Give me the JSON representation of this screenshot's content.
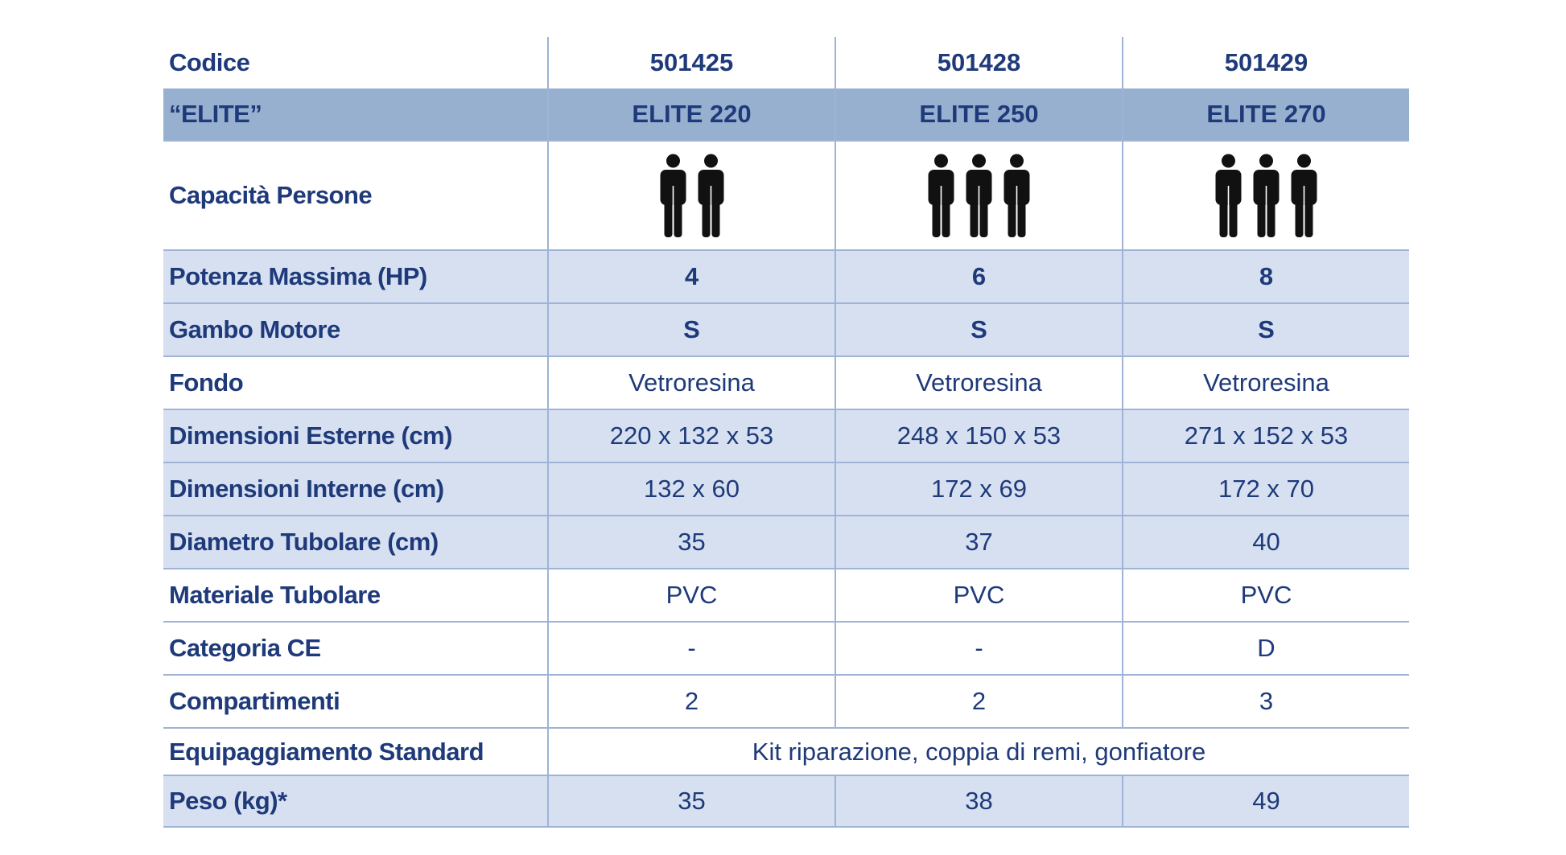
{
  "table": {
    "header": {
      "label": "Codice",
      "values": [
        "501425",
        "501428",
        "501429"
      ]
    },
    "rows": [
      {
        "label": "“ELITE”",
        "values": [
          "ELITE 220",
          "ELITE 250",
          "ELITE 270"
        ]
      },
      {
        "label": "Capacità Persone",
        "persons": [
          2,
          3,
          3
        ]
      },
      {
        "label": "Potenza Massima (HP)",
        "values": [
          "4",
          "6",
          "8"
        ]
      },
      {
        "label": "Gambo Motore",
        "values": [
          "S",
          "S",
          "S"
        ]
      },
      {
        "label": "Fondo",
        "values": [
          "Vetroresina",
          "Vetroresina",
          "Vetroresina"
        ]
      },
      {
        "label": "Dimensioni Esterne (cm)",
        "values": [
          "220 x 132 x 53",
          "248 x 150 x 53",
          "271 x 152 x 53"
        ]
      },
      {
        "label": "Dimensioni Interne (cm)",
        "values": [
          "132 x 60",
          "172 x 69",
          "172 x 70"
        ]
      },
      {
        "label": "Diametro Tubolare (cm)",
        "values": [
          "35",
          "37",
          "40"
        ]
      },
      {
        "label": "Materiale Tubolare",
        "values": [
          "PVC",
          "PVC",
          "PVC"
        ]
      },
      {
        "label": "Categoria CE",
        "values": [
          "-",
          "-",
          "D"
        ]
      },
      {
        "label": "Compartimenti",
        "values": [
          "2",
          "2",
          "3"
        ]
      },
      {
        "label": "Equipaggiamento Standard",
        "span": "Kit riparazione, coppia di remi, gonfiatore"
      },
      {
        "label": "Peso (kg)*",
        "values": [
          "35",
          "38",
          "49"
        ]
      }
    ]
  }
}
